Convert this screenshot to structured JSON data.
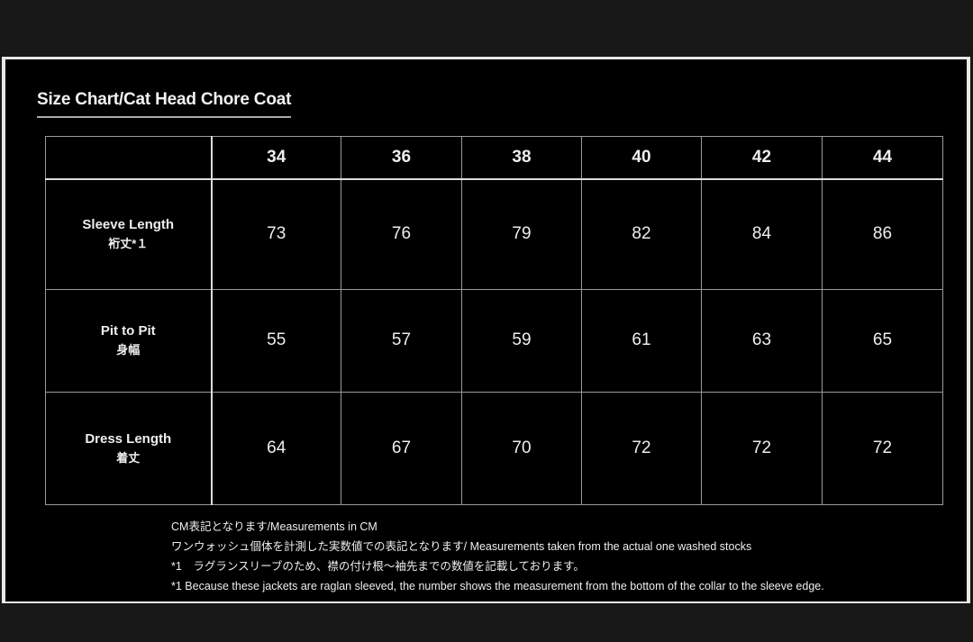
{
  "title": "Size Chart/Cat Head Chore Coat",
  "table": {
    "sizes": [
      "34",
      "36",
      "38",
      "40",
      "42",
      "44"
    ],
    "rows": [
      {
        "label": "Sleeve Length",
        "label_jp": "裄丈*１",
        "values": [
          "73",
          "76",
          "79",
          "82",
          "84",
          "86"
        ]
      },
      {
        "label": "Pit to Pit",
        "label_jp": "身幅",
        "values": [
          "55",
          "57",
          "59",
          "61",
          "63",
          "65"
        ]
      },
      {
        "label": "Dress Length",
        "label_jp": "着丈",
        "values": [
          "64",
          "67",
          "70",
          "72",
          "72",
          "72"
        ]
      }
    ]
  },
  "notes": [
    "CM表記となります/Measurements in CM",
    "ワンウォッシュ個体を計測した実数値での表記となります/ Measurements taken from the actual one washed stocks",
    "*1　ラグランスリーブのため、襟の付け根〜袖先までの数値を記載しております。",
    "*1 Because these jackets are raglan sleeved, the number shows the measurement from the bottom of the collar to the sleeve edge."
  ]
}
